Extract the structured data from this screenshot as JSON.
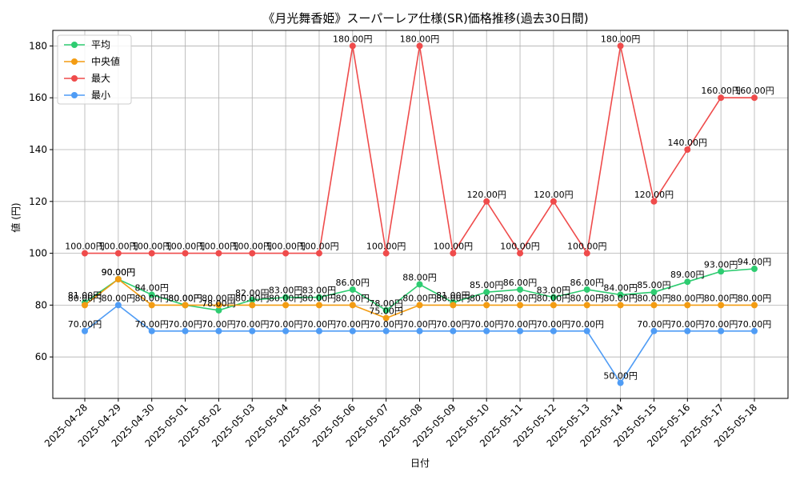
{
  "chart_data": {
    "type": "line",
    "title": "《月光舞香姫》スーパーレア仕様(SR)価格推移(過去30日間)",
    "xlabel": "日付",
    "ylabel": "値 (円)",
    "ylim": [
      44,
      186
    ],
    "yticks": [
      60,
      80,
      100,
      120,
      140,
      160,
      180
    ],
    "grid": true,
    "legend_position": "top-left",
    "label_suffix": "円",
    "categories": [
      "2025-04-28",
      "2025-04-29",
      "2025-04-30",
      "2025-05-01",
      "2025-05-02",
      "2025-05-03",
      "2025-05-04",
      "2025-05-05",
      "2025-05-06",
      "2025-05-07",
      "2025-05-08",
      "2025-05-09",
      "2025-05-10",
      "2025-05-11",
      "2025-05-12",
      "2025-05-13",
      "2025-05-14",
      "2025-05-15",
      "2025-05-16",
      "2025-05-17",
      "2025-05-18"
    ],
    "series": [
      {
        "name": "平均",
        "color": "#2ecc71",
        "values": [
          81,
          90,
          84,
          80,
          78,
          82,
          83,
          83,
          86,
          78,
          88,
          81,
          85,
          86,
          83,
          86,
          84,
          85,
          89,
          93,
          94
        ]
      },
      {
        "name": "中央値",
        "color": "#f39c12",
        "values": [
          80,
          90,
          80,
          80,
          80,
          80,
          80,
          80,
          80,
          75,
          80,
          80,
          80,
          80,
          80,
          80,
          80,
          80,
          80,
          80,
          80
        ]
      },
      {
        "name": "最大",
        "color": "#ef4b4b",
        "values": [
          100,
          100,
          100,
          100,
          100,
          100,
          100,
          100,
          180,
          100,
          180,
          100,
          120,
          100,
          120,
          100,
          180,
          120,
          140,
          160,
          160
        ]
      },
      {
        "name": "最小",
        "color": "#4f9cf5",
        "values": [
          70,
          80,
          70,
          70,
          70,
          70,
          70,
          70,
          70,
          70,
          70,
          70,
          70,
          70,
          70,
          70,
          50,
          70,
          70,
          70,
          70
        ]
      }
    ]
  }
}
